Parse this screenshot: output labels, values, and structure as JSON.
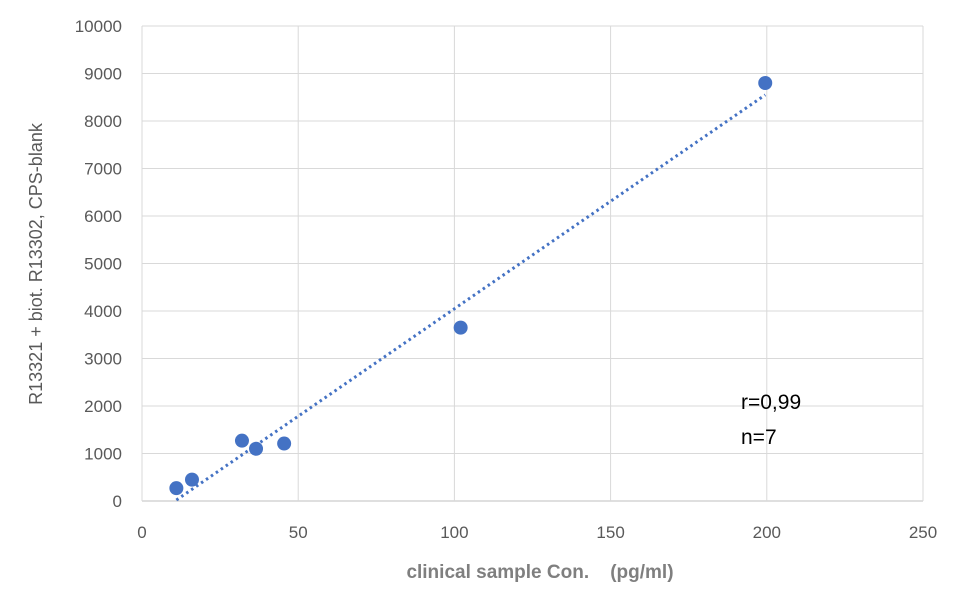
{
  "chart_data": {
    "type": "scatter",
    "title": "",
    "xlabel": "clinical sample Con.    (pg/ml)",
    "ylabel": "R13321 + biot. R13302, CPS-blank",
    "xlim": [
      0,
      250
    ],
    "ylim": [
      0,
      10000
    ],
    "x_ticks": [
      0,
      50,
      100,
      150,
      200,
      250
    ],
    "y_ticks": [
      0,
      1000,
      2000,
      3000,
      4000,
      5000,
      6000,
      7000,
      8000,
      9000,
      10000
    ],
    "grid": true,
    "legend": "none",
    "series": [
      {
        "marker_color": "#4472c4",
        "points": [
          {
            "x": 11,
            "y": 270
          },
          {
            "x": 16,
            "y": 450
          },
          {
            "x": 32,
            "y": 1270
          },
          {
            "x": 36.5,
            "y": 1100
          },
          {
            "x": 45.5,
            "y": 1210
          },
          {
            "x": 102,
            "y": 3650
          },
          {
            "x": 199.5,
            "y": 8800
          }
        ]
      }
    ],
    "trendline": {
      "type": "linear",
      "style": "dotted",
      "color": "#4472c4",
      "from": {
        "x": 11,
        "y": 20
      },
      "to": {
        "x": 199.5,
        "y": 8550
      }
    },
    "annotations": [
      "r=0,99",
      "n=7"
    ]
  }
}
